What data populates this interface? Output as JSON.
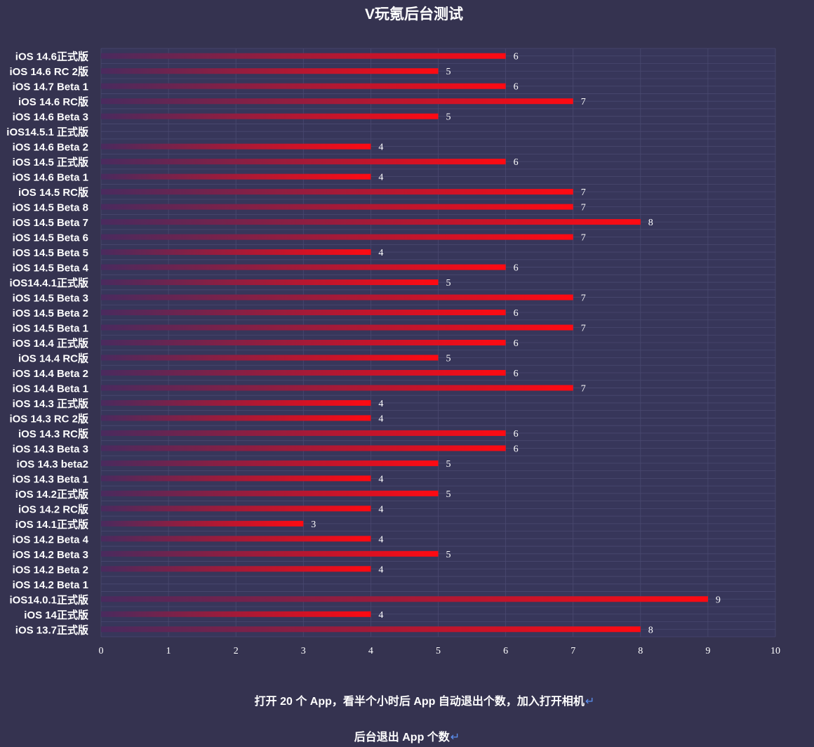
{
  "colors": {
    "background": "#353350",
    "plot_background": "#37365a",
    "grid": "#4a4970",
    "bar_start": "#4a2a5e",
    "bar_end": "#ff0a12",
    "text": "#ffffff",
    "return_mark": "#5b8ff0"
  },
  "chart_data": {
    "type": "bar",
    "orientation": "horizontal",
    "title": "V玩氪后台测试",
    "xlim": [
      0,
      10
    ],
    "xticks": [
      "0",
      "1",
      "2",
      "3",
      "4",
      "5",
      "6",
      "7",
      "8",
      "9",
      "10"
    ],
    "grid": true,
    "data_labels": true,
    "categories": [
      "iOS 14.6正式版",
      "iOS 14.6 RC 2版",
      "iOS 14.7  Beta 1",
      "iOS 14.6 RC版",
      "iOS 14.6  Beta 3",
      "iOS14.5.1 正式版",
      "iOS 14.6  Beta 2",
      "iOS 14.5 正式版",
      "iOS 14.6  Beta 1",
      "iOS 14.5 RC版",
      "iOS 14.5  Beta 8",
      "iOS 14.5  Beta 7",
      "iOS 14.5  Beta 6",
      "iOS 14.5  Beta 5",
      "iOS 14.5  Beta 4",
      "iOS14.4.1正式版",
      "iOS 14.5  Beta 3",
      "iOS 14.5  Beta 2",
      "iOS 14.5  Beta 1",
      "iOS 14.4 正式版",
      "iOS 14.4 RC版",
      "iOS 14.4  Beta 2",
      "iOS 14.4  Beta 1",
      "iOS 14.3 正式版",
      "iOS 14.3 RC 2版",
      "iOS 14.3 RC版",
      "iOS 14.3  Beta 3",
      "iOS 14.3  beta2",
      "iOS 14.3  Beta 1",
      "iOS 14.2正式版",
      "iOS 14.2 RC版",
      "iOS 14.1正式版",
      "iOS 14.2  Beta 4",
      "iOS 14.2  Beta 3",
      "iOS 14.2  Beta 2",
      "iOS 14.2  Beta 1",
      "iOS14.0.1正式版",
      "iOS 14正式版",
      "iOS 13.7正式版"
    ],
    "values": [
      6,
      5,
      6,
      7,
      5,
      null,
      4,
      6,
      4,
      7,
      7,
      8,
      7,
      4,
      6,
      5,
      7,
      6,
      7,
      6,
      5,
      6,
      7,
      4,
      4,
      6,
      6,
      5,
      4,
      5,
      4,
      3,
      4,
      5,
      4,
      null,
      9,
      4,
      8
    ]
  },
  "captions": {
    "line1": "打开 20 个 App，看半个小时后 App 自动退出个数，加入打开相机",
    "line2": "后台退出 App 个数",
    "return_mark": "↵"
  }
}
